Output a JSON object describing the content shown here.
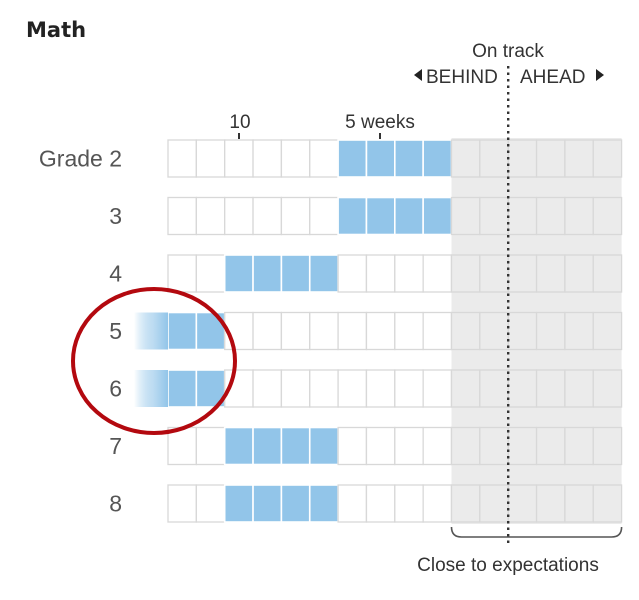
{
  "title": "Math",
  "on_track_label": "On track",
  "behind_label": "BEHIND",
  "ahead_label": "AHEAD",
  "close_label": "Close to expectations",
  "colors": {
    "fill": "#92c5e9",
    "fill_dark": "#7fb7e0",
    "cell_border": "#d8d8d8",
    "shade": "#ebebeb",
    "circle": "#b3090f"
  },
  "chart_data": {
    "type": "bar",
    "title": "Math",
    "x_tick_labels": [
      "10",
      "5 weeks"
    ],
    "categories": [
      "Grade 2",
      "3",
      "4",
      "5",
      "6",
      "7",
      "8"
    ],
    "cells_per_row": 16,
    "close_to_expectations_cells": [
      10,
      15
    ],
    "on_track_divider_after_cell": 12,
    "rows": [
      {
        "label": "Grade 2",
        "filled_start": 6,
        "filled_end": 9,
        "fade_left": false
      },
      {
        "label": "3",
        "filled_start": 6,
        "filled_end": 9,
        "fade_left": false
      },
      {
        "label": "4",
        "filled_start": 2,
        "filled_end": 5,
        "fade_left": false
      },
      {
        "label": "5",
        "filled_start": 0,
        "filled_end": 1,
        "fade_left": true
      },
      {
        "label": "6",
        "filled_start": 0,
        "filled_end": 1,
        "fade_left": true
      },
      {
        "label": "7",
        "filled_start": 2,
        "filled_end": 5,
        "fade_left": false
      },
      {
        "label": "8",
        "filled_start": 2,
        "filled_end": 5,
        "fade_left": false
      }
    ],
    "highlighted_rows": [
      "5",
      "6"
    ]
  }
}
